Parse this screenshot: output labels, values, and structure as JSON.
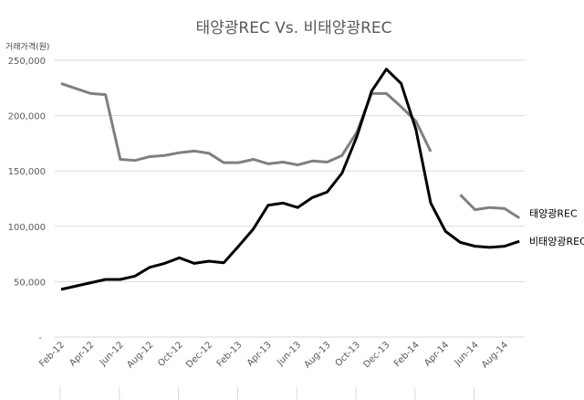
{
  "chart_data": {
    "type": "line",
    "title": "태양광REC Vs. 비태양광REC",
    "ylabel": "거래가격(원)",
    "xlabel": "",
    "ylim": [
      0,
      250000
    ],
    "yticks": [
      0,
      50000,
      100000,
      150000,
      200000,
      250000
    ],
    "ytick_labels": [
      "-",
      "50,000",
      "100,000",
      "150,000",
      "200,000",
      "250,000"
    ],
    "grid": "horizontal",
    "legend": "inline labels at line ends (right)",
    "x": [
      "Feb-12",
      "Mar-12",
      "Apr-12",
      "May-12",
      "Jun-12",
      "Jul-12",
      "Aug-12",
      "Sep-12",
      "Oct-12",
      "Nov-12",
      "Dec-12",
      "Jan-13",
      "Feb-13",
      "Mar-13",
      "Apr-13",
      "May-13",
      "Jun-13",
      "Jul-13",
      "Aug-13",
      "Sep-13",
      "Oct-13",
      "Nov-13",
      "Dec-13",
      "Jan-14",
      "Feb-14",
      "Mar-14",
      "Apr-14",
      "May-14",
      "Jun-14",
      "Jul-14",
      "Aug-14",
      "Sep-14"
    ],
    "xtick_labels": [
      "Feb-12",
      "Apr-12",
      "Jun-12",
      "Aug-12",
      "Oct-12",
      "Dec-12",
      "Feb-13",
      "Apr-13",
      "Jun-13",
      "Aug-13",
      "Oct-13",
      "Dec-13",
      "Feb-14",
      "Apr-14",
      "Jun-14",
      "Aug-14"
    ],
    "series": [
      {
        "name": "태양광REC",
        "color": "#808080",
        "values": [
          229000,
          224500,
          220000,
          219000,
          160500,
          159500,
          163000,
          164000,
          166500,
          168000,
          166000,
          157500,
          157500,
          160500,
          156500,
          158000,
          155500,
          159000,
          158000,
          164000,
          185000,
          220000,
          220000,
          208000,
          195000,
          167500,
          null,
          128500,
          115000,
          117000,
          116000,
          107500
        ]
      },
      {
        "name": "비태양광REC",
        "color": "#000000",
        "values": [
          43000,
          46000,
          49000,
          52000,
          52000,
          55000,
          63000,
          66500,
          71500,
          66500,
          68500,
          67000,
          82000,
          97500,
          119000,
          121000,
          117000,
          126000,
          131000,
          148000,
          181000,
          222000,
          242000,
          229000,
          187500,
          121000,
          95500,
          85500,
          82000,
          81000,
          82000,
          86500
        ]
      }
    ]
  }
}
